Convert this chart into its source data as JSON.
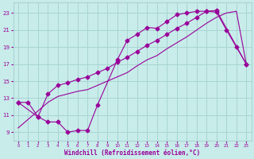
{
  "xlabel": "Windchill (Refroidissement éolien,°C)",
  "background_color": "#c8ecea",
  "grid_color": "#a8d4d2",
  "line_color": "#990099",
  "xlim": [
    -0.5,
    23.5
  ],
  "ylim": [
    8.0,
    24.2
  ],
  "xticks": [
    0,
    1,
    2,
    3,
    4,
    5,
    6,
    7,
    8,
    9,
    10,
    11,
    12,
    13,
    14,
    15,
    16,
    17,
    18,
    19,
    20,
    21,
    22,
    23
  ],
  "yticks": [
    9,
    11,
    13,
    15,
    17,
    19,
    21,
    23
  ],
  "curve1_x": [
    0,
    1,
    2,
    3,
    4,
    5,
    6,
    7,
    8,
    10,
    11,
    12,
    13,
    14,
    15,
    16,
    17,
    18,
    19,
    20,
    21,
    22,
    23
  ],
  "curve1_y": [
    12.5,
    12.5,
    10.8,
    10.2,
    10.2,
    9.0,
    9.2,
    9.2,
    12.2,
    17.5,
    19.8,
    20.5,
    21.3,
    21.2,
    22.0,
    22.8,
    23.0,
    23.2,
    23.2,
    23.1,
    21.0,
    19.0,
    17.0
  ],
  "curve2_x": [
    0,
    2,
    3,
    4,
    5,
    6,
    7,
    8,
    9,
    10,
    11,
    12,
    13,
    14,
    15,
    16,
    17,
    18,
    19,
    20,
    23
  ],
  "curve2_y": [
    12.5,
    10.8,
    13.5,
    14.5,
    14.8,
    15.2,
    15.5,
    16.0,
    16.5,
    17.2,
    17.8,
    18.5,
    19.2,
    19.8,
    20.5,
    21.2,
    21.8,
    22.5,
    23.2,
    23.3,
    17.0
  ],
  "curve3_x": [
    0,
    1,
    2,
    3,
    4,
    5,
    6,
    7,
    8,
    9,
    10,
    11,
    12,
    13,
    14,
    15,
    16,
    17,
    18,
    19,
    20,
    21,
    22,
    23
  ],
  "curve3_y": [
    9.5,
    10.5,
    11.5,
    12.5,
    13.2,
    13.5,
    13.8,
    14.0,
    14.5,
    15.0,
    15.5,
    16.0,
    16.8,
    17.5,
    18.0,
    18.8,
    19.5,
    20.2,
    21.0,
    21.8,
    22.5,
    23.0,
    23.2,
    17.0
  ],
  "markersize": 2.5
}
